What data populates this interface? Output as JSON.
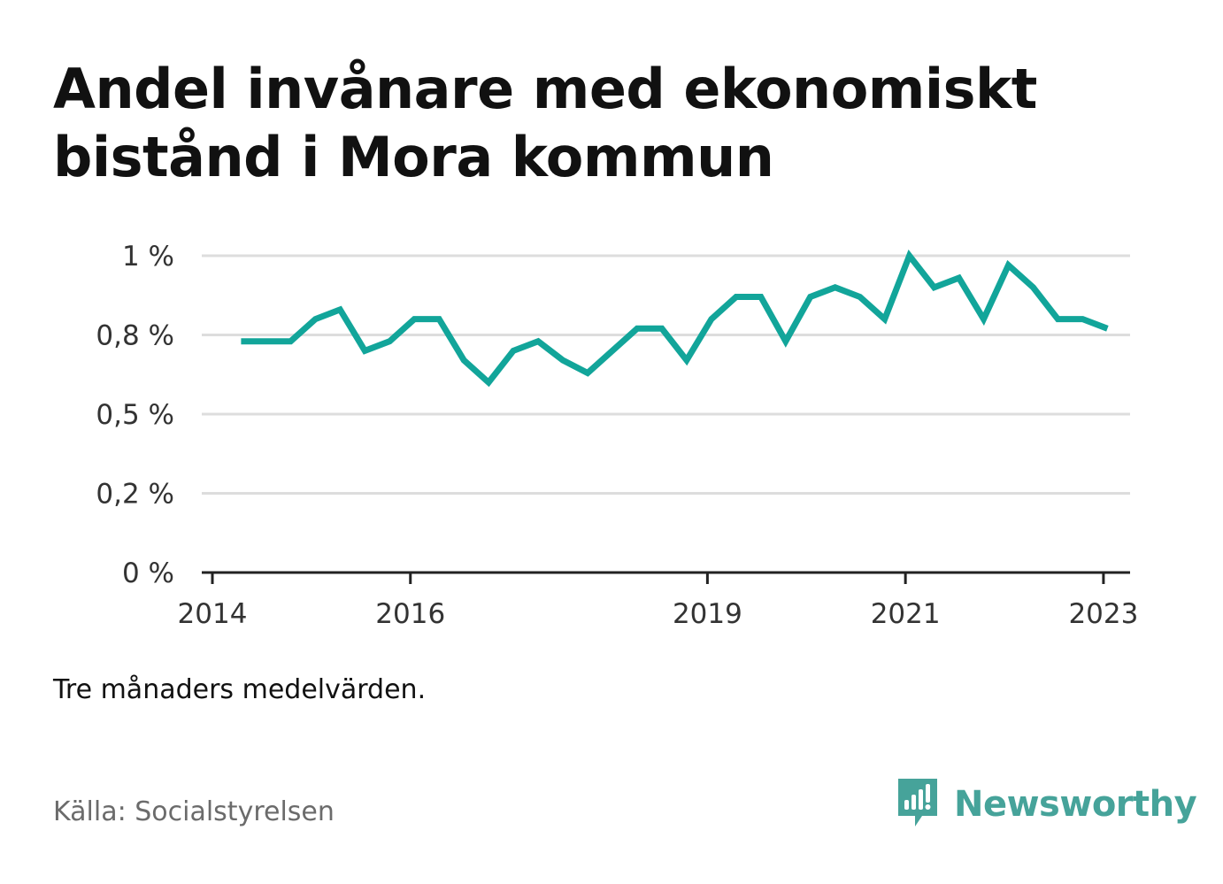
{
  "title": "Andel invånare med ekonomiskt bistånd i Mora kommun",
  "note": "Tre månaders medelvärden.",
  "source": "Källa: Socialstyrelsen",
  "brand": {
    "name": "Newsworthy",
    "icon": "newsworthy-logo-icon"
  },
  "colors": {
    "line": "#12a59a",
    "grid": "#dddddd",
    "axis": "#222222",
    "brand": "#46a39a"
  },
  "chart_data": {
    "type": "line",
    "title": "Andel invånare med ekonomiskt bistånd i Mora kommun",
    "xlabel": "",
    "ylabel": "",
    "xlim": [
      2014,
      2023.26
    ],
    "ylim": [
      0,
      1.0
    ],
    "grid": true,
    "legend": "none",
    "y_ticks": [
      {
        "value": 0,
        "label": "0 %"
      },
      {
        "value": 0.25,
        "label": "0,2 %"
      },
      {
        "value": 0.5,
        "label": "0,5 %"
      },
      {
        "value": 0.75,
        "label": "0,8 %"
      },
      {
        "value": 1.0,
        "label": "1 %"
      }
    ],
    "x_ticks": [
      {
        "value": 2014,
        "label": "2014"
      },
      {
        "value": 2016,
        "label": "2016"
      },
      {
        "value": 2019,
        "label": "2019"
      },
      {
        "value": 2021,
        "label": "2021"
      },
      {
        "value": 2023,
        "label": "2023"
      }
    ],
    "series": [
      {
        "x": [
          2014.29,
          2014.54,
          2014.79,
          2015.04,
          2015.29,
          2015.54,
          2015.79,
          2016.04,
          2016.29,
          2016.54,
          2016.79,
          2017.04,
          2017.29,
          2017.54,
          2017.79,
          2018.04,
          2018.29,
          2018.54,
          2018.79,
          2019.04,
          2019.29,
          2019.54,
          2019.79,
          2020.04,
          2020.29,
          2020.54,
          2020.79,
          2021.04,
          2021.29,
          2021.54,
          2021.79,
          2022.04,
          2022.29,
          2022.54,
          2022.79,
          2023.04
        ],
        "y": [
          0.73,
          0.73,
          0.73,
          0.8,
          0.83,
          0.7,
          0.73,
          0.8,
          0.8,
          0.67,
          0.6,
          0.7,
          0.73,
          0.67,
          0.63,
          0.7,
          0.77,
          0.77,
          0.67,
          0.8,
          0.87,
          0.87,
          0.73,
          0.87,
          0.9,
          0.87,
          0.8,
          1.0,
          0.9,
          0.93,
          0.8,
          0.97,
          0.9,
          0.8,
          0.8,
          0.77
        ]
      }
    ]
  }
}
